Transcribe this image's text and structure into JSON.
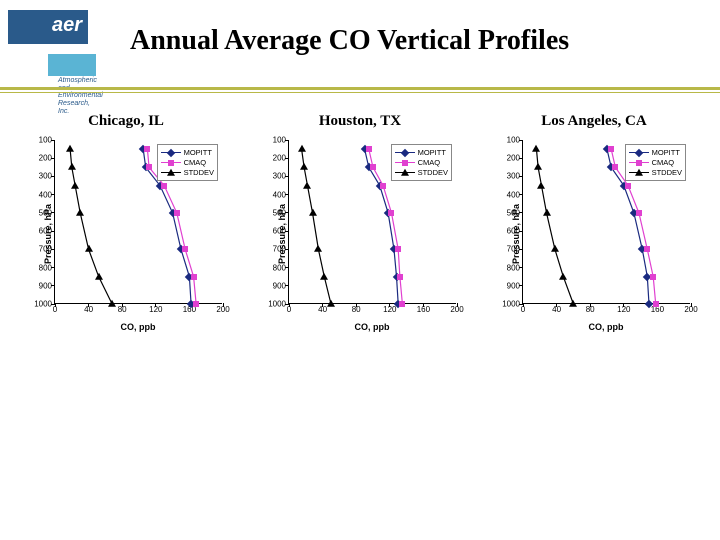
{
  "title": "Annual Average CO Vertical Profiles",
  "logo": {
    "text": "aer",
    "sub1": "Atmospheric and",
    "sub2": "Environmental Research, Inc."
  },
  "axis": {
    "ylabel": "Pressure, hPa",
    "xlabel": "CO, ppb",
    "yticks": [
      100,
      200,
      300,
      400,
      500,
      600,
      700,
      800,
      900,
      1000
    ],
    "xticks": [
      0,
      40,
      80,
      120,
      160,
      200
    ],
    "ymin": 100,
    "ymax": 1000,
    "xmin": 0,
    "xmax": 200
  },
  "series_meta": {
    "MOPITT": {
      "label": "MOPITT",
      "color": "#1a2a80",
      "marker": "diamond"
    },
    "CMAQ": {
      "label": "CMAQ",
      "color": "#e040d0",
      "marker": "square"
    },
    "STDDEV": {
      "label": "STDDEV",
      "color": "#000000",
      "marker": "triangle"
    }
  },
  "panels": [
    {
      "title": "Chicago, IL",
      "series": {
        "MOPITT": [
          [
            105,
            150
          ],
          [
            108,
            250
          ],
          [
            125,
            350
          ],
          [
            140,
            500
          ],
          [
            150,
            700
          ],
          [
            160,
            850
          ],
          [
            162,
            1000
          ]
        ],
        "CMAQ": [
          [
            110,
            150
          ],
          [
            112,
            250
          ],
          [
            130,
            350
          ],
          [
            145,
            500
          ],
          [
            155,
            700
          ],
          [
            165,
            850
          ],
          [
            168,
            1000
          ]
        ],
        "STDDEV": [
          [
            18,
            150
          ],
          [
            20,
            250
          ],
          [
            24,
            350
          ],
          [
            30,
            500
          ],
          [
            40,
            700
          ],
          [
            52,
            850
          ],
          [
            68,
            1000
          ]
        ]
      }
    },
    {
      "title": "Houston, TX",
      "series": {
        "MOPITT": [
          [
            90,
            150
          ],
          [
            95,
            250
          ],
          [
            108,
            350
          ],
          [
            118,
            500
          ],
          [
            125,
            700
          ],
          [
            128,
            850
          ],
          [
            130,
            1000
          ]
        ],
        "CMAQ": [
          [
            95,
            150
          ],
          [
            100,
            250
          ],
          [
            112,
            350
          ],
          [
            122,
            500
          ],
          [
            130,
            700
          ],
          [
            132,
            850
          ],
          [
            135,
            1000
          ]
        ],
        "STDDEV": [
          [
            15,
            150
          ],
          [
            18,
            250
          ],
          [
            22,
            350
          ],
          [
            28,
            500
          ],
          [
            35,
            700
          ],
          [
            42,
            850
          ],
          [
            50,
            1000
          ]
        ]
      }
    },
    {
      "title": "Los Angeles, CA",
      "series": {
        "MOPITT": [
          [
            100,
            150
          ],
          [
            105,
            250
          ],
          [
            120,
            350
          ],
          [
            132,
            500
          ],
          [
            142,
            700
          ],
          [
            148,
            850
          ],
          [
            150,
            1000
          ]
        ],
        "CMAQ": [
          [
            105,
            150
          ],
          [
            110,
            250
          ],
          [
            125,
            350
          ],
          [
            138,
            500
          ],
          [
            148,
            700
          ],
          [
            155,
            850
          ],
          [
            158,
            1000
          ]
        ],
        "STDDEV": [
          [
            16,
            150
          ],
          [
            18,
            250
          ],
          [
            22,
            350
          ],
          [
            28,
            500
          ],
          [
            38,
            700
          ],
          [
            48,
            850
          ],
          [
            60,
            1000
          ]
        ]
      }
    }
  ],
  "plot_style": {
    "line_width": 1.2,
    "marker_size": 6,
    "label_fontsize": 9,
    "tick_fontsize": 8,
    "title_fontsize": 15
  }
}
